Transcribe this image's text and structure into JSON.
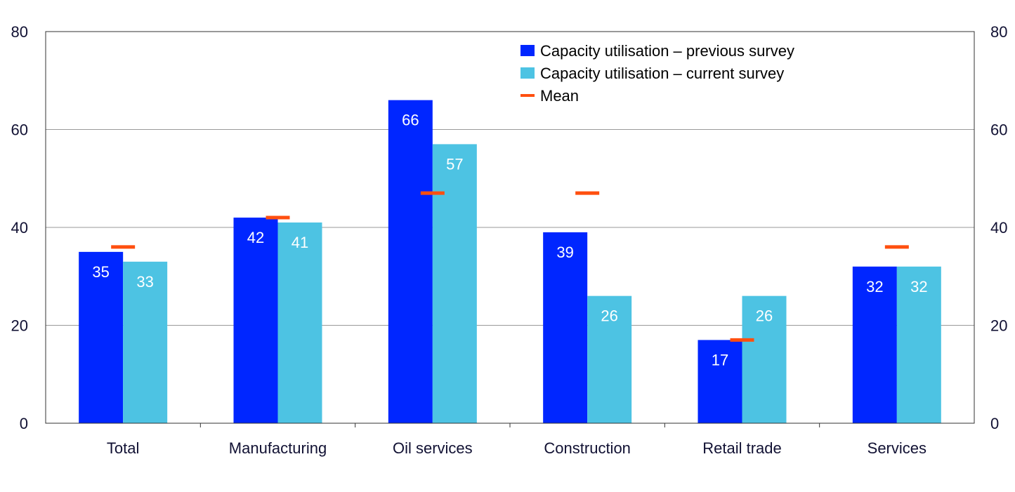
{
  "chart_data": {
    "type": "bar",
    "categories": [
      "Total",
      "Manufacturing",
      "Oil services",
      "Construction",
      "Retail trade",
      "Services"
    ],
    "series": [
      {
        "name": "Capacity utilisation – previous survey",
        "values": [
          35,
          42,
          66,
          39,
          17,
          32
        ],
        "color": "#0026FF",
        "kind": "bar"
      },
      {
        "name": "Capacity utilisation – current survey",
        "values": [
          33,
          41,
          57,
          26,
          26,
          32
        ],
        "color": "#4DC3E3",
        "kind": "bar"
      },
      {
        "name": "Mean",
        "values": [
          36,
          42,
          47,
          47,
          17,
          36
        ],
        "color": "#FF4F0F",
        "kind": "marker"
      }
    ],
    "ylim": [
      0,
      80
    ],
    "yticks": [
      0,
      20,
      40,
      60,
      80
    ],
    "y2ticks": [
      0,
      20,
      40,
      60,
      80
    ],
    "grid": true,
    "legend_position": "top-right",
    "data_labels": true
  }
}
